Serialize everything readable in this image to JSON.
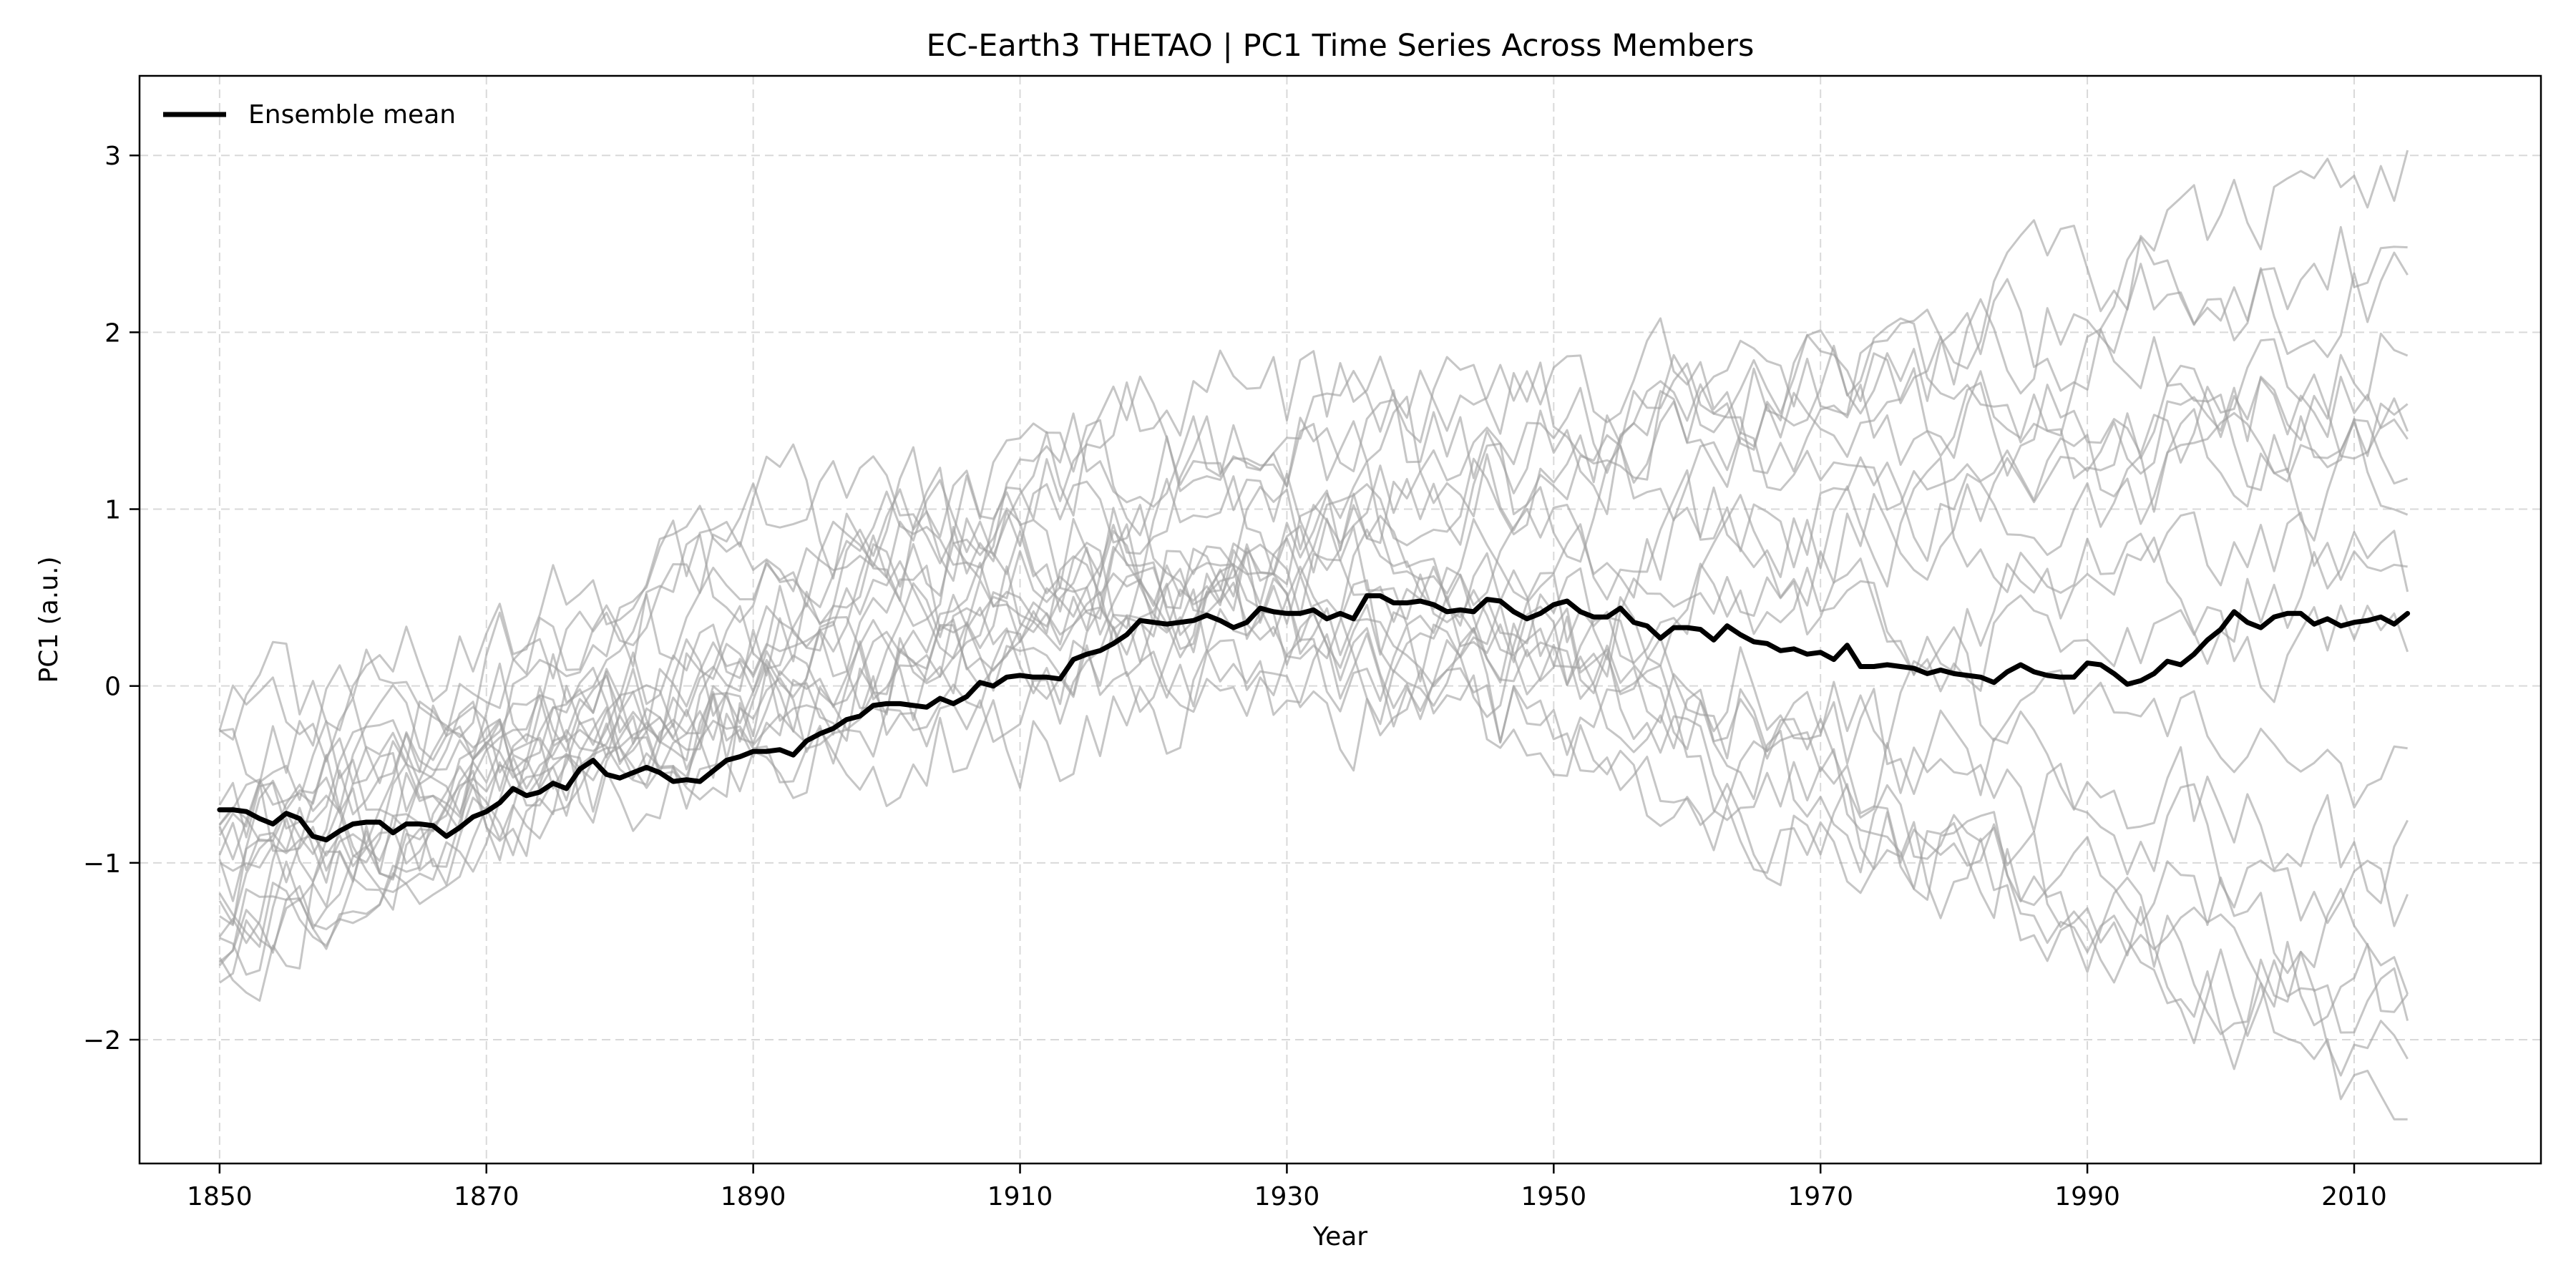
{
  "chart_data": {
    "type": "line",
    "title": "EC-Earth3 THETAO | PC1 Time Series Across Members",
    "xlabel": "Year",
    "ylabel": "PC1 (a.u.)",
    "xlim": [
      1844,
      2024
    ],
    "ylim": [
      -2.7,
      3.45
    ],
    "xticks": [
      1850,
      1870,
      1890,
      1910,
      1930,
      1950,
      1970,
      1990,
      2010
    ],
    "yticks": [
      -2,
      -1,
      0,
      1,
      2,
      3
    ],
    "ytick_labels": [
      "−2",
      "−1",
      "0",
      "1",
      "2",
      "3"
    ],
    "grid": true,
    "legend_position": "top-left",
    "colors": {
      "mean": "#000000",
      "member": "#a0a0a0",
      "grid": "#d9d9d9"
    },
    "series": [
      {
        "name": "Ensemble mean",
        "x_start": 1850,
        "x_step": 1,
        "values": [
          -0.7,
          -0.7,
          -0.71,
          -0.75,
          -0.78,
          -0.72,
          -0.75,
          -0.85,
          -0.87,
          -0.82,
          -0.78,
          -0.77,
          -0.77,
          -0.83,
          -0.78,
          -0.78,
          -0.79,
          -0.85,
          -0.8,
          -0.74,
          -0.71,
          -0.66,
          -0.58,
          -0.62,
          -0.6,
          -0.55,
          -0.58,
          -0.47,
          -0.42,
          -0.5,
          -0.52,
          -0.49,
          -0.46,
          -0.49,
          -0.54,
          -0.53,
          -0.54,
          -0.48,
          -0.42,
          -0.4,
          -0.37,
          -0.37,
          -0.36,
          -0.39,
          -0.31,
          -0.27,
          -0.24,
          -0.19,
          -0.17,
          -0.11,
          -0.1,
          -0.1,
          -0.11,
          -0.12,
          -0.07,
          -0.1,
          -0.06,
          0.02,
          0.0,
          0.05,
          0.06,
          0.05,
          0.05,
          0.04,
          0.15,
          0.18,
          0.2,
          0.24,
          0.29,
          0.37,
          0.36,
          0.35,
          0.36,
          0.37,
          0.4,
          0.37,
          0.33,
          0.36,
          0.44,
          0.42,
          0.41,
          0.41,
          0.43,
          0.38,
          0.41,
          0.38,
          0.51,
          0.51,
          0.47,
          0.47,
          0.48,
          0.46,
          0.42,
          0.43,
          0.42,
          0.49,
          0.48,
          0.42,
          0.38,
          0.41,
          0.46,
          0.48,
          0.42,
          0.39,
          0.39,
          0.44,
          0.36,
          0.34,
          0.27,
          0.33,
          0.33,
          0.32,
          0.26,
          0.34,
          0.29,
          0.25,
          0.24,
          0.2,
          0.21,
          0.18,
          0.19,
          0.15,
          0.23,
          0.11,
          0.11,
          0.12,
          0.11,
          0.1,
          0.07,
          0.09,
          0.07,
          0.06,
          0.05,
          0.02,
          0.08,
          0.12,
          0.08,
          0.06,
          0.05,
          0.05,
          0.13,
          0.12,
          0.07,
          0.01,
          0.03,
          0.07,
          0.14,
          0.12,
          0.18,
          0.26,
          0.32,
          0.42,
          0.36,
          0.33,
          0.39,
          0.41,
          0.41,
          0.35,
          0.38,
          0.34,
          0.36,
          0.37,
          0.39,
          0.35,
          0.41
        ]
      }
    ]
  }
}
